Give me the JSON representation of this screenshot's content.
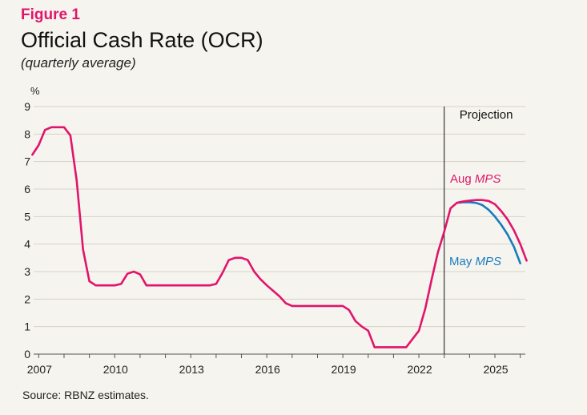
{
  "header": {
    "figure_label": "Figure 1",
    "title": "Official Cash Rate (OCR)",
    "subtitle": "(quarterly average)"
  },
  "source": "Source: RBNZ estimates.",
  "colors": {
    "aug": "#e0156b",
    "may": "#1a7bbf",
    "grid": "#d6d2c6",
    "axis": "#555555",
    "background": "#f6f4ee"
  },
  "chart_data": {
    "type": "line",
    "title": "Official Cash Rate (OCR)",
    "subtitle": "(quarterly average)",
    "ylabel": "%",
    "xlabel": "",
    "ylim": [
      0,
      9
    ],
    "xlim": [
      2006.8,
      2026.2
    ],
    "yticks": [
      0,
      1,
      2,
      3,
      4,
      5,
      6,
      7,
      8,
      9
    ],
    "xticks": [
      2007,
      2010,
      2013,
      2016,
      2019,
      2022,
      2025
    ],
    "grid": true,
    "projection_start": 2023.0,
    "projection_label": "Projection",
    "series": [
      {
        "name": "Aug MPS",
        "label_plain": "Aug ",
        "label_italic": "MPS",
        "color_key": "aug",
        "points": [
          [
            2006.75,
            7.25
          ],
          [
            2007.0,
            7.6
          ],
          [
            2007.25,
            8.15
          ],
          [
            2007.5,
            8.25
          ],
          [
            2007.75,
            8.25
          ],
          [
            2008.0,
            8.25
          ],
          [
            2008.25,
            7.95
          ],
          [
            2008.5,
            6.3
          ],
          [
            2008.75,
            3.8
          ],
          [
            2009.0,
            2.65
          ],
          [
            2009.25,
            2.5
          ],
          [
            2009.5,
            2.5
          ],
          [
            2009.75,
            2.5
          ],
          [
            2010.0,
            2.5
          ],
          [
            2010.25,
            2.55
          ],
          [
            2010.5,
            2.92
          ],
          [
            2010.75,
            3.0
          ],
          [
            2011.0,
            2.9
          ],
          [
            2011.25,
            2.5
          ],
          [
            2011.5,
            2.5
          ],
          [
            2011.75,
            2.5
          ],
          [
            2012.0,
            2.5
          ],
          [
            2012.5,
            2.5
          ],
          [
            2013.0,
            2.5
          ],
          [
            2013.5,
            2.5
          ],
          [
            2013.75,
            2.5
          ],
          [
            2014.0,
            2.55
          ],
          [
            2014.25,
            2.95
          ],
          [
            2014.5,
            3.42
          ],
          [
            2014.75,
            3.5
          ],
          [
            2015.0,
            3.5
          ],
          [
            2015.25,
            3.42
          ],
          [
            2015.5,
            3.0
          ],
          [
            2015.75,
            2.72
          ],
          [
            2016.0,
            2.5
          ],
          [
            2016.25,
            2.3
          ],
          [
            2016.5,
            2.1
          ],
          [
            2016.75,
            1.85
          ],
          [
            2017.0,
            1.75
          ],
          [
            2017.5,
            1.75
          ],
          [
            2018.0,
            1.75
          ],
          [
            2018.5,
            1.75
          ],
          [
            2019.0,
            1.75
          ],
          [
            2019.25,
            1.6
          ],
          [
            2019.5,
            1.2
          ],
          [
            2019.75,
            1.0
          ],
          [
            2020.0,
            0.85
          ],
          [
            2020.25,
            0.25
          ],
          [
            2020.5,
            0.25
          ],
          [
            2020.75,
            0.25
          ],
          [
            2021.0,
            0.25
          ],
          [
            2021.25,
            0.25
          ],
          [
            2021.5,
            0.25
          ],
          [
            2021.75,
            0.55
          ],
          [
            2022.0,
            0.85
          ],
          [
            2022.25,
            1.65
          ],
          [
            2022.5,
            2.7
          ],
          [
            2022.75,
            3.7
          ],
          [
            2023.0,
            4.45
          ],
          [
            2023.25,
            5.3
          ],
          [
            2023.5,
            5.5
          ],
          [
            2023.75,
            5.55
          ],
          [
            2024.0,
            5.58
          ],
          [
            2024.25,
            5.6
          ],
          [
            2024.5,
            5.6
          ],
          [
            2024.75,
            5.57
          ],
          [
            2025.0,
            5.45
          ],
          [
            2025.25,
            5.2
          ],
          [
            2025.5,
            4.9
          ],
          [
            2025.75,
            4.5
          ],
          [
            2026.0,
            4.0
          ],
          [
            2026.25,
            3.4
          ]
        ]
      },
      {
        "name": "May MPS",
        "label_plain": "May ",
        "label_italic": "MPS",
        "color_key": "may",
        "points": [
          [
            2023.5,
            5.5
          ],
          [
            2023.75,
            5.52
          ],
          [
            2024.0,
            5.52
          ],
          [
            2024.25,
            5.5
          ],
          [
            2024.5,
            5.42
          ],
          [
            2024.75,
            5.25
          ],
          [
            2025.0,
            5.0
          ],
          [
            2025.25,
            4.7
          ],
          [
            2025.5,
            4.35
          ],
          [
            2025.75,
            3.9
          ],
          [
            2026.0,
            3.3
          ]
        ]
      }
    ]
  }
}
